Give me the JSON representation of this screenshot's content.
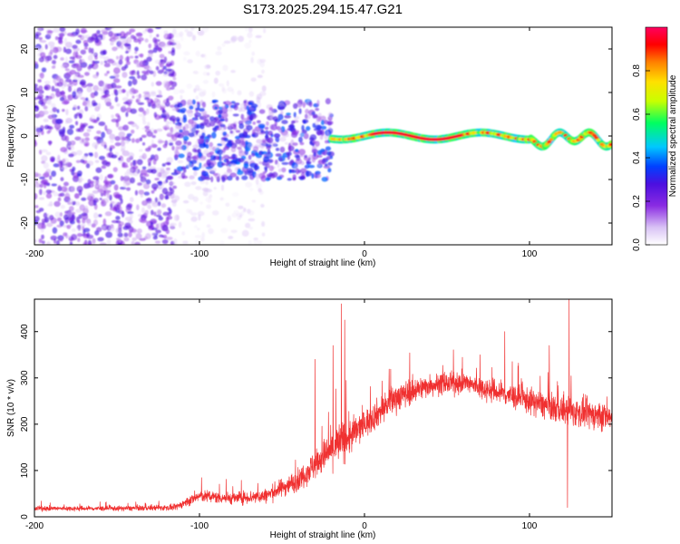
{
  "title": "S173.2025.294.15.47.G21",
  "chart_data": [
    {
      "type": "heatmap",
      "xlabel": "Height of straight line (km)",
      "ylabel": "Frequency (Hz)",
      "xlim": [
        -200,
        150
      ],
      "ylim": [
        -25,
        25
      ],
      "xticks": [
        -200,
        -100,
        0,
        100
      ],
      "yticks": [
        -20,
        -10,
        0,
        10,
        20
      ],
      "colorbar": {
        "label": "Normalized spectral amplitude",
        "range": [
          0,
          1
        ],
        "ticks": [
          "0.0",
          "0.2",
          "0.4",
          "0.6",
          "0.8"
        ],
        "colors": [
          "#ffffff",
          "#d9c2f5",
          "#8a2be2",
          "#4b0fe0",
          "#0040ff",
          "#00c8ff",
          "#00ff60",
          "#c8ff00",
          "#ffe000",
          "#ff8000",
          "#ff0000",
          "#ff0060"
        ]
      },
      "features": [
        {
          "name": "scattered noise",
          "x_range": [
            -200,
            -115
          ],
          "freq_range": [
            -25,
            25
          ],
          "amplitude": 0.3
        },
        {
          "name": "sparse noise",
          "x_range": [
            -115,
            -60
          ],
          "freq_range": [
            -25,
            25
          ],
          "amplitude": 0.1
        },
        {
          "name": "broad signal band",
          "x_range": [
            -115,
            -20
          ],
          "freq_range": [
            -10,
            8
          ],
          "amplitude": 0.4
        },
        {
          "name": "main signal line",
          "x_range": [
            -20,
            150
          ],
          "center_freq_hz": 0,
          "amplitude": 0.95
        }
      ]
    },
    {
      "type": "line",
      "xlabel": "Height of straight line (km)",
      "ylabel": "SNR (10 * v/v)",
      "xlim": [
        -200,
        150
      ],
      "ylim": [
        0,
        470
      ],
      "xticks": [
        -200,
        -100,
        0,
        100
      ],
      "yticks": [
        0,
        100,
        200,
        300,
        400
      ],
      "color": "#f03030",
      "envelope": [
        {
          "x": -200,
          "mean": 18,
          "spread": 10
        },
        {
          "x": -150,
          "mean": 18,
          "spread": 10
        },
        {
          "x": -115,
          "mean": 20,
          "spread": 12
        },
        {
          "x": -100,
          "mean": 45,
          "spread": 25
        },
        {
          "x": -80,
          "mean": 40,
          "spread": 25
        },
        {
          "x": -60,
          "mean": 45,
          "spread": 30
        },
        {
          "x": -40,
          "mean": 80,
          "spread": 45
        },
        {
          "x": -25,
          "mean": 130,
          "spread": 70
        },
        {
          "x": -15,
          "mean": 160,
          "spread": 90
        },
        {
          "x": -10,
          "mean": 170,
          "spread": 80
        },
        {
          "x": 0,
          "mean": 200,
          "spread": 60
        },
        {
          "x": 20,
          "mean": 260,
          "spread": 60
        },
        {
          "x": 40,
          "mean": 285,
          "spread": 45
        },
        {
          "x": 60,
          "mean": 290,
          "spread": 45
        },
        {
          "x": 80,
          "mean": 270,
          "spread": 50
        },
        {
          "x": 100,
          "mean": 250,
          "spread": 55
        },
        {
          "x": 120,
          "mean": 230,
          "spread": 60
        },
        {
          "x": 150,
          "mean": 215,
          "spread": 60
        }
      ],
      "spikes": [
        {
          "x": -14,
          "y": 460
        },
        {
          "x": -12,
          "y": 425
        },
        {
          "x": -19,
          "y": 370
        },
        {
          "x": -30,
          "y": 340
        },
        {
          "x": 124,
          "y": 470
        },
        {
          "x": 123,
          "y": 20
        },
        {
          "x": 85,
          "y": 400
        },
        {
          "x": 70,
          "y": 350
        },
        {
          "x": 112,
          "y": 370
        }
      ]
    }
  ]
}
